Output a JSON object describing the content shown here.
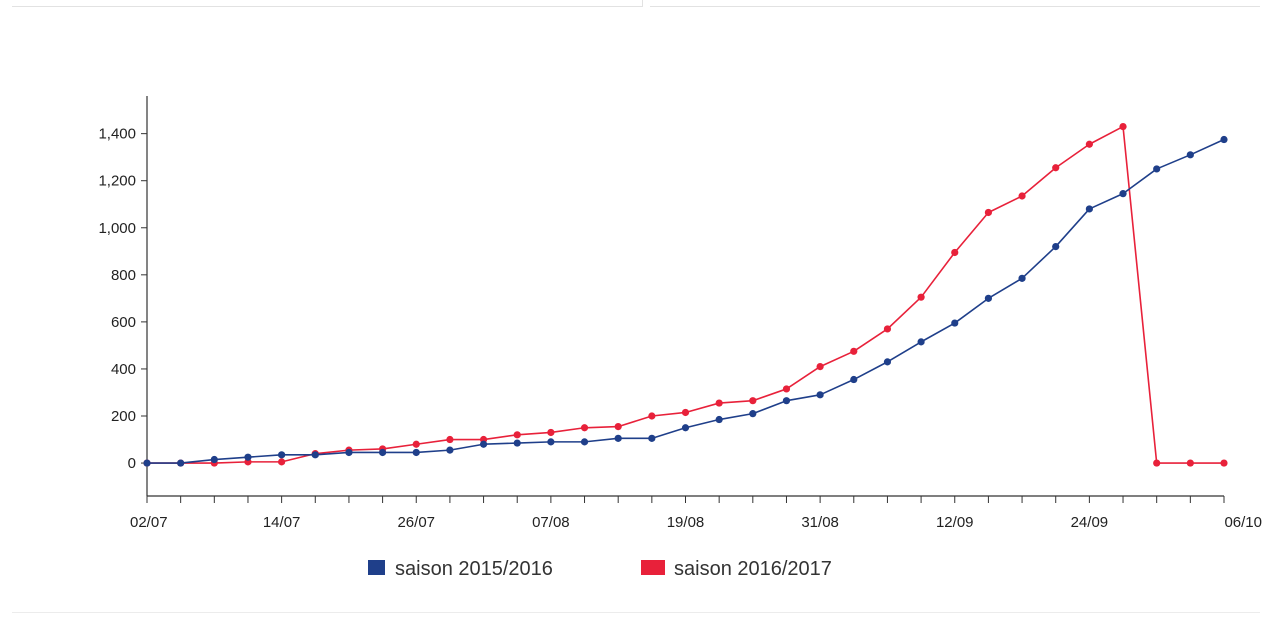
{
  "chart_data": {
    "type": "line",
    "title": "",
    "xlabel": "",
    "ylabel": "",
    "ylim": [
      -140,
      1560
    ],
    "xlim": [
      "02/07",
      "06/10"
    ],
    "yticks": [
      {
        "value": 0,
        "label": "0"
      },
      {
        "value": 200,
        "label": "200"
      },
      {
        "value": 400,
        "label": "400"
      },
      {
        "value": 600,
        "label": "600"
      },
      {
        "value": 800,
        "label": "800"
      },
      {
        "value": 1000,
        "label": "1,000"
      },
      {
        "value": 1200,
        "label": "1,200"
      },
      {
        "value": 1400,
        "label": "1,400"
      }
    ],
    "xtick_labels": [
      {
        "x": "02/07",
        "label": "02/07"
      },
      {
        "x": "14/07",
        "label": "14/07"
      },
      {
        "x": "26/07",
        "label": "26/07"
      },
      {
        "x": "07/08",
        "label": "07/08"
      },
      {
        "x": "19/08",
        "label": "19/08"
      },
      {
        "x": "31/08",
        "label": "31/08"
      },
      {
        "x": "12/09",
        "label": "12/09"
      },
      {
        "x": "24/09",
        "label": "24/09"
      },
      {
        "x": "06/10",
        "label": "06/10"
      }
    ],
    "x": [
      "02/07",
      "05/07",
      "08/07",
      "11/07",
      "14/07",
      "17/07",
      "20/07",
      "23/07",
      "26/07",
      "29/07",
      "01/08",
      "04/08",
      "07/08",
      "10/08",
      "13/08",
      "16/08",
      "19/08",
      "22/08",
      "25/08",
      "28/08",
      "31/08",
      "03/09",
      "06/09",
      "09/09",
      "12/09",
      "15/09",
      "18/09",
      "21/09",
      "24/09",
      "27/09",
      "30/09",
      "03/10",
      "06/10"
    ],
    "grid": false,
    "legend_position": "bottom-center",
    "series": [
      {
        "name": "saison 2015/2016",
        "color": "#1f3f8a",
        "values": [
          0,
          0,
          15,
          25,
          35,
          35,
          45,
          45,
          45,
          55,
          80,
          85,
          90,
          90,
          105,
          105,
          150,
          185,
          210,
          265,
          290,
          355,
          430,
          515,
          595,
          700,
          785,
          920,
          1080,
          1145,
          1250,
          1310,
          1375
        ]
      },
      {
        "name": "saison 2016/2017",
        "color": "#e8213a",
        "values": [
          0,
          0,
          0,
          5,
          5,
          40,
          55,
          60,
          80,
          100,
          100,
          120,
          130,
          150,
          155,
          200,
          215,
          255,
          265,
          315,
          410,
          475,
          570,
          705,
          895,
          1065,
          1135,
          1255,
          1355,
          1430,
          0,
          0,
          0
        ]
      }
    ]
  }
}
